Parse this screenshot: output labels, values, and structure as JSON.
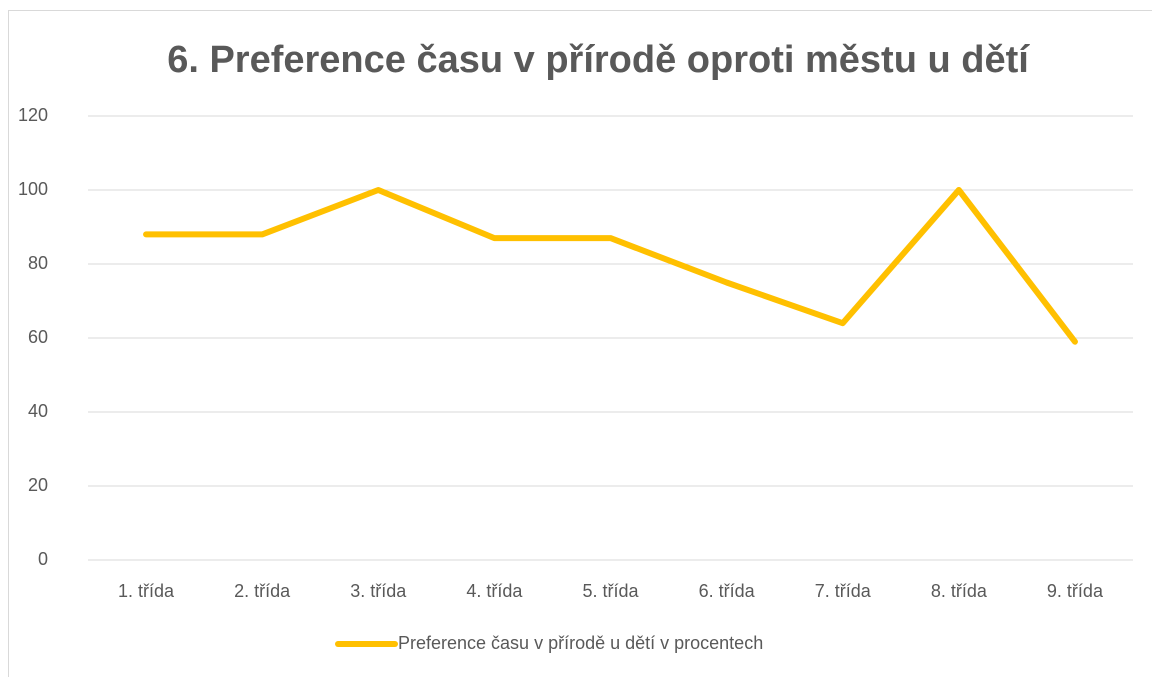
{
  "chart_data": {
    "type": "line",
    "title": "6. Preference času v přírodě oproti městu u dětí",
    "categories": [
      "1. třída",
      "2. třída",
      "3. třída",
      "4. třída",
      "5. třída",
      "6. třída",
      "7. třída",
      "8. třída",
      "9. třída"
    ],
    "series": [
      {
        "name": "Preference času v přírodě u dětí v procentech",
        "color": "#ffc000",
        "values": [
          88,
          88,
          100,
          87,
          87,
          75,
          64,
          100,
          59
        ]
      }
    ],
    "ylim": [
      0,
      120
    ],
    "yticks": [
      0,
      20,
      40,
      60,
      80,
      100,
      120
    ],
    "grid": true,
    "legend": "bottom"
  }
}
